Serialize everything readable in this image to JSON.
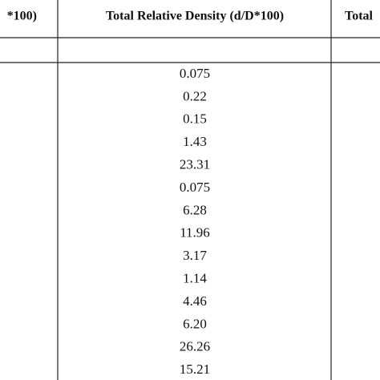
{
  "table": {
    "header": [
      "*100)",
      "Total Relative Density (d/D*100)",
      "Total"
    ],
    "rows": [
      "0.075",
      "0.22",
      "0.15",
      "1.43",
      "23.31",
      "0.075",
      "6.28",
      "11.96",
      "3.17",
      "1.14",
      "4.46",
      "6.20",
      "26.26",
      "15.21"
    ]
  }
}
